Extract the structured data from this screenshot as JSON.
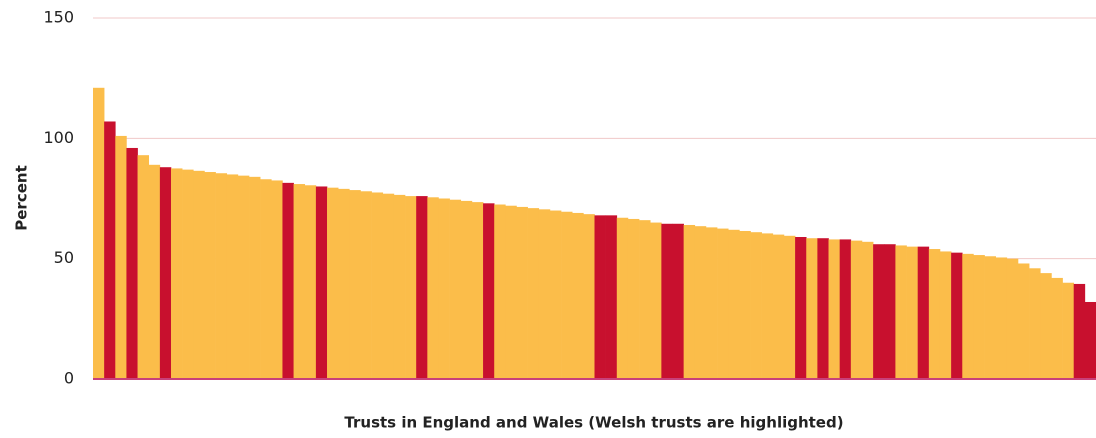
{
  "chart_data": {
    "type": "bar",
    "y_label": "Percent",
    "x_label": "Trusts in England and Wales (Welsh trusts are highlighted)",
    "values": [
      121,
      107,
      101,
      96,
      93,
      89,
      88,
      87.5,
      87,
      86.5,
      86,
      85.5,
      85,
      84.5,
      84,
      83,
      82.5,
      81.5,
      81,
      80.5,
      80,
      79.5,
      79,
      78.5,
      78,
      77.5,
      77,
      76.5,
      76,
      76,
      75.5,
      75,
      74.5,
      74,
      73.5,
      73,
      72.5,
      72,
      71.5,
      71,
      70.5,
      70,
      69.5,
      69,
      68.5,
      68,
      68,
      67,
      66.5,
      66,
      65,
      64.5,
      64.5,
      64,
      63.5,
      63,
      62.5,
      62,
      61.5,
      61,
      60.5,
      60,
      59.5,
      59,
      58.5,
      58.5,
      58,
      58,
      57.5,
      57,
      56,
      56,
      55.5,
      55,
      55,
      54,
      53,
      52.5,
      52,
      51.5,
      51,
      50.5,
      50,
      48,
      46,
      44,
      42,
      40,
      39.5,
      32
    ],
    "colors": [
      "#fbbd4a",
      "#c8102e",
      "#fbbd4a",
      "#c8102e",
      "#fbbd4a",
      "#fbbd4a",
      "#c8102e",
      "#fbbd4a",
      "#fbbd4a",
      "#fbbd4a",
      "#fbbd4a",
      "#fbbd4a",
      "#fbbd4a",
      "#fbbd4a",
      "#fbbd4a",
      "#fbbd4a",
      "#fbbd4a",
      "#c8102e",
      "#fbbd4a",
      "#fbbd4a",
      "#c8102e",
      "#fbbd4a",
      "#fbbd4a",
      "#fbbd4a",
      "#fbbd4a",
      "#fbbd4a",
      "#fbbd4a",
      "#fbbd4a",
      "#fbbd4a",
      "#c8102e",
      "#fbbd4a",
      "#fbbd4a",
      "#fbbd4a",
      "#fbbd4a",
      "#fbbd4a",
      "#c8102e",
      "#fbbd4a",
      "#fbbd4a",
      "#fbbd4a",
      "#fbbd4a",
      "#fbbd4a",
      "#fbbd4a",
      "#fbbd4a",
      "#fbbd4a",
      "#fbbd4a",
      "#c8102e",
      "#c8102e",
      "#fbbd4a",
      "#fbbd4a",
      "#fbbd4a",
      "#fbbd4a",
      "#c8102e",
      "#c8102e",
      "#fbbd4a",
      "#fbbd4a",
      "#fbbd4a",
      "#fbbd4a",
      "#fbbd4a",
      "#fbbd4a",
      "#fbbd4a",
      "#fbbd4a",
      "#fbbd4a",
      "#fbbd4a",
      "#c8102e",
      "#fbbd4a",
      "#c8102e",
      "#fbbd4a",
      "#c8102e",
      "#fbbd4a",
      "#fbbd4a",
      "#c8102e",
      "#c8102e",
      "#fbbd4a",
      "#fbbd4a",
      "#c8102e",
      "#fbbd4a",
      "#fbbd4a",
      "#c8102e",
      "#fbbd4a",
      "#fbbd4a",
      "#fbbd4a",
      "#fbbd4a",
      "#fbbd4a",
      "#fbbd4a",
      "#fbbd4a",
      "#fbbd4a",
      "#fbbd4a",
      "#fbbd4a",
      "#c8102e",
      "#c8102e"
    ],
    "ylim": [
      0,
      150
    ],
    "yticks": [
      0,
      50,
      100,
      150
    ],
    "grid": true
  }
}
